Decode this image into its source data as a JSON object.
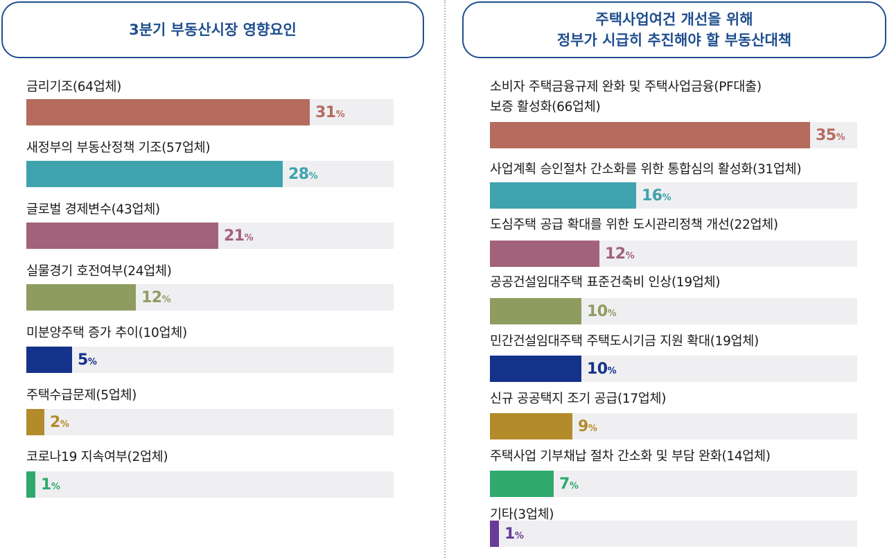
{
  "colors": [
    "#b56b5e",
    "#3fa3ae",
    "#a26279",
    "#8f9c60",
    "#15328a",
    "#b38b2a",
    "#2faa6c",
    "#6a3c98"
  ],
  "left_panel": {
    "title": "3분기 부동산시장 영향요인"
  },
  "right_panel": {
    "title_line1": "주택사업여건 개선을 위해",
    "title_line2": "정부가 시급히 추진해야 할 부동산대책"
  },
  "chart_data": [
    {
      "type": "bar",
      "orientation": "horizontal",
      "title": "3분기 부동산시장 영향요인",
      "unit": "%",
      "xlim": [
        0,
        100
      ],
      "categories": [
        "금리기조(64업체)",
        "새정부의 부동산정책 기조(57업체)",
        "글로벌 경제변수(43업체)",
        "실물경기 호전여부(24업체)",
        "미분양주택 증가 추이(10업체)",
        "주택수급문제(5업체)",
        "코로나19 지속여부(2업체)"
      ],
      "values": [
        31,
        28,
        21,
        12,
        5,
        2,
        1
      ],
      "value_labels": [
        "31",
        "28",
        "21",
        "12",
        "5",
        "2",
        "1"
      ]
    },
    {
      "type": "bar",
      "orientation": "horizontal",
      "title": "주택사업여건 개선을 위해 정부가 시급히 추진해야 할 부동산대책",
      "unit": "%",
      "xlim": [
        0,
        100
      ],
      "categories": [
        [
          "소비자 주택금융규제 완화 및 주택사업금융(PF대출)",
          "보증 활성화(66업체)"
        ],
        [
          "사업계획 승인절차 간소화를 위한 통합심의 활성화(31업체)"
        ],
        [
          "도심주택 공급 확대를 위한 도시관리정책 개선(22업체)"
        ],
        [
          "공공건설임대주택 표준건축비 인상(19업체)"
        ],
        [
          "민간건설임대주택 주택도시기금 지원 확대(19업체)"
        ],
        [
          "신규 공공택지 조기 공급(17업체)"
        ],
        [
          "주택사업 기부채납 절차 간소화 및 부담 완화(14업체)"
        ],
        [
          "기타(3업체)"
        ]
      ],
      "values": [
        35,
        16,
        12,
        10,
        10,
        9,
        7,
        1
      ],
      "value_labels": [
        "35",
        "16",
        "12",
        "10",
        "10",
        "9",
        "7",
        "1"
      ]
    }
  ]
}
